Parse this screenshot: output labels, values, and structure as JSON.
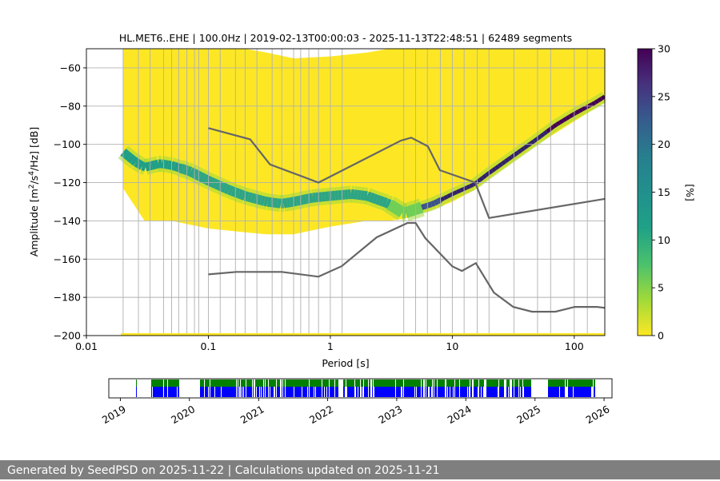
{
  "chart_data": [
    {
      "type": "heatmap",
      "title": "HL.MET6..EHE | 100.0Hz | 2019-02-13T00:00:03 - 2025-11-13T22:48:51 | 62489 segments",
      "xlabel": "Period [s]",
      "ylabel_parts": [
        "Amplitude [m",
        "2",
        "/s",
        "4",
        "/Hz] [dB]"
      ],
      "xscale": "log",
      "xlim": [
        0.01,
        178
      ],
      "ylim": [
        -200,
        -50
      ],
      "xticks": [
        0.01,
        0.1,
        1,
        10,
        100
      ],
      "xtick_labels": [
        "0.01",
        "0.1",
        "1",
        "10",
        "100"
      ],
      "yticks": [
        -60,
        -80,
        -100,
        -120,
        -140,
        -160,
        -180,
        -200
      ],
      "ytick_labels": [
        "−60",
        "−80",
        "−100",
        "−120",
        "−140",
        "−160",
        "−180",
        "−200"
      ],
      "grid": true,
      "colorbar": {
        "label": "[%]",
        "range": [
          0,
          30
        ],
        "ticks": [
          0,
          5,
          10,
          15,
          20,
          25,
          30
        ],
        "tick_labels": [
          "0",
          "5",
          "10",
          "15",
          "20",
          "25",
          "30"
        ],
        "colormap": "viridis"
      },
      "period_gridlines": [
        0.02,
        0.0267,
        0.0333,
        0.0429,
        0.05,
        0.0571,
        0.0667,
        0.0769,
        0.0833,
        0.1,
        0.125,
        0.1667,
        0.2,
        0.25,
        0.3333,
        0.4,
        0.5,
        0.5714,
        0.6667,
        0.8,
        1.0,
        1.25,
        4.0,
        5.0,
        6.25,
        8.0,
        10.0,
        12.5,
        16.0,
        20.0,
        32.0,
        50.0,
        64.0,
        100.0,
        128.0
      ],
      "mode_curve": {
        "x": [
          0.02,
          0.025,
          0.03,
          0.04,
          0.05,
          0.07,
          0.1,
          0.15,
          0.2,
          0.3,
          0.4,
          0.5,
          0.7,
          1.0,
          1.5,
          2.0,
          3.0,
          4.0,
          5.0,
          7.0,
          10.0,
          15.0,
          20.0,
          30.0,
          50.0,
          70.0,
          100.0,
          150.0,
          178.0
        ],
        "y": [
          -104,
          -109,
          -112,
          -110,
          -111,
          -114,
          -119,
          -124,
          -127,
          -130,
          -131,
          -130,
          -128,
          -127,
          -126,
          -127,
          -131,
          -136,
          -134,
          -131,
          -126,
          -121,
          -115,
          -107,
          -97,
          -90,
          -84,
          -78,
          -75
        ]
      },
      "density_hull": {
        "x": [
          0.02,
          0.03,
          0.05,
          0.1,
          0.2,
          0.3,
          0.5,
          1.0,
          2.0,
          3.0,
          4.0,
          5.0,
          7.0,
          10.0,
          15.0,
          20.0,
          30.0,
          50.0,
          100.0,
          178.0
        ],
        "upper": [
          -50,
          -50,
          -50,
          -50,
          -50,
          -52,
          -55,
          -54,
          -52,
          -50,
          -50,
          -50,
          -50,
          -50,
          -50,
          -50,
          -50,
          -50,
          -50,
          -50
        ],
        "lower": [
          -123,
          -140,
          -140,
          -144,
          -146,
          -147,
          -147,
          -143,
          -140,
          -140,
          -139,
          -137,
          -134,
          -130,
          -124,
          -118,
          -110,
          -100,
          -88,
          -78
        ]
      },
      "nhnm": {
        "x": [
          0.1,
          0.22,
          0.32,
          0.8,
          3.8,
          4.6,
          6.3,
          7.9,
          15.4,
          20.0,
          178.0
        ],
        "y": [
          -91.5,
          -97.4,
          -110.5,
          -120.0,
          -98.0,
          -96.5,
          -101.0,
          -113.5,
          -120.0,
          -138.5,
          -128.5
        ]
      },
      "nlnm": {
        "x": [
          0.1,
          0.17,
          0.4,
          0.8,
          1.24,
          2.4,
          4.3,
          5.0,
          6.0,
          10.0,
          12.0,
          15.6,
          21.9,
          31.6,
          45.0,
          70.0,
          101.0,
          154.0,
          178.0
        ],
        "y": [
          -168.0,
          -166.7,
          -166.7,
          -169.2,
          -163.7,
          -148.6,
          -141.1,
          -141.1,
          -149.0,
          -163.8,
          -166.2,
          -162.1,
          -177.5,
          -185.0,
          -187.5,
          -187.5,
          -185.0,
          -185.0,
          -185.5
        ]
      }
    },
    {
      "type": "timeline",
      "x_ticks": [
        "2019",
        "2020",
        "2021",
        "2022",
        "2023",
        "2024",
        "2025",
        "2026"
      ],
      "range": [
        "2018-11-01",
        "2026-02-12"
      ],
      "coverage_colors": {
        "data": "#0000ff",
        "availability": "#008000"
      },
      "gaps": [
        [
          "2018-11-01",
          "2019-03-20"
        ],
        [
          "2019-03-25",
          "2019-06-10"
        ],
        [
          "2019-11-05",
          "2020-02-25"
        ],
        [
          "2024-12-10",
          "2025-03-10"
        ],
        [
          "2025-11-14",
          "2026-02-12"
        ]
      ]
    }
  ],
  "footer": {
    "text": "Generated by SeedPSD on 2025-11-22 | Calculations updated on 2025-11-21"
  },
  "colors": {
    "grid": "#b0b0b0",
    "noise_model_line": "#666666",
    "footer_bg": "#7f7f7f"
  }
}
